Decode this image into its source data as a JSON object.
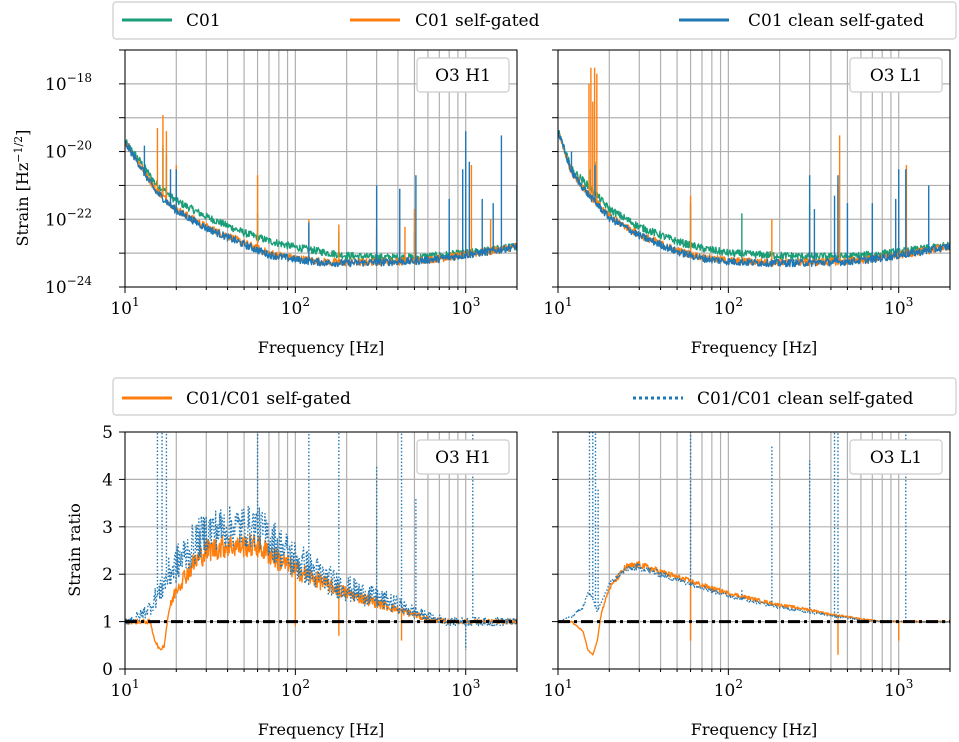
{
  "legend_top": {
    "items": [
      {
        "label": "C01",
        "color": "#1a9e77",
        "style": "solid"
      },
      {
        "label": "C01 self-gated",
        "color": "#ff7f0e",
        "style": "solid"
      },
      {
        "label": "C01 clean self-gated",
        "color": "#1f77b4",
        "style": "solid"
      }
    ]
  },
  "legend_bottom": {
    "items": [
      {
        "label": "C01/C01 self-gated",
        "color": "#ff7f0e",
        "style": "solid"
      },
      {
        "label": "C01/C01 clean self-gated",
        "color": "#1f77b4",
        "style": "dotted"
      }
    ]
  },
  "chart_data": [
    {
      "type": "line",
      "panel_label": "O3 H1",
      "xlabel": "Frequency [Hz]",
      "ylabel_main": "Strain [Hz",
      "ylabel_exp": "−1/2",
      "ylabel_close": "]",
      "x_scale": "log",
      "y_scale": "log",
      "xlim": [
        10,
        2000
      ],
      "ylim": [
        1e-24,
        1e-17
      ],
      "x_ticks": [
        {
          "base": "10",
          "exp": "1",
          "v": 10
        },
        {
          "base": "10",
          "exp": "2",
          "v": 100
        },
        {
          "base": "10",
          "exp": "3",
          "v": 1000
        }
      ],
      "y_ticks": [
        {
          "base": "10",
          "exp": "−18",
          "v": 1e-18
        },
        {
          "base": "10",
          "exp": "−20",
          "v": 1e-20
        },
        {
          "base": "10",
          "exp": "−22",
          "v": 1e-22
        },
        {
          "base": "10",
          "exp": "−24",
          "v": 1e-24
        }
      ],
      "grid": true,
      "series": [
        {
          "name": "C01",
          "color": "#1a9e77",
          "x": [
            10,
            12,
            15,
            20,
            30,
            50,
            70,
            100,
            150,
            200,
            300,
            500,
            700,
            1000,
            1500,
            2000
          ],
          "y": [
            2e-20,
            6e-21,
            1.2e-21,
            3.5e-22,
            1.2e-22,
            4e-23,
            2.3e-23,
            1.5e-23,
            1.05e-23,
            8.5e-24,
            7.5e-24,
            7.5e-24,
            8.5e-24,
            1e-23,
            1.3e-23,
            1.6e-23
          ],
          "spikes": [
            [
              16.7,
              1.5e-20
            ],
            [
              17.5,
              8e-21
            ],
            [
              20,
              1.5e-21
            ],
            [
              60,
              1.5e-22
            ],
            [
              120,
              5e-23
            ],
            [
              180,
              4e-23
            ],
            [
              300,
              3e-23
            ],
            [
              500,
              4e-23
            ]
          ]
        },
        {
          "name": "C01 self-gated",
          "color": "#ff7f0e",
          "x": [
            10,
            12,
            15,
            20,
            30,
            50,
            70,
            100,
            150,
            200,
            300,
            500,
            700,
            1000,
            1500,
            2000
          ],
          "y": [
            2e-20,
            5e-21,
            8e-22,
            2e-22,
            6e-23,
            2e-23,
            1e-23,
            7e-24,
            5.5e-24,
            5.3e-24,
            5.5e-24,
            6e-24,
            7e-24,
            9e-24,
            1.2e-23,
            1.6e-23
          ],
          "spikes": [
            [
              15.5,
              5e-20
            ],
            [
              16.7,
              1.2e-19
            ],
            [
              17.5,
              4e-20
            ],
            [
              20,
              4e-21
            ],
            [
              60,
              2e-21
            ],
            [
              120,
              1e-22
            ],
            [
              180,
              7e-23
            ],
            [
              300,
              6e-23
            ],
            [
              440,
              6e-23
            ],
            [
              500,
              2e-22
            ],
            [
              1000,
              6e-22
            ],
            [
              1080,
              4e-21
            ],
            [
              1400,
              1e-22
            ]
          ]
        },
        {
          "name": "C01 clean self-gated",
          "color": "#1f77b4",
          "x": [
            10,
            12,
            15,
            20,
            30,
            50,
            70,
            100,
            150,
            200,
            300,
            500,
            700,
            1000,
            1500,
            2000
          ],
          "y": [
            1.8e-20,
            4.5e-21,
            7e-22,
            1.8e-22,
            5.5e-23,
            1.8e-23,
            9e-24,
            6.5e-24,
            5.2e-24,
            5.1e-24,
            5.3e-24,
            5.8e-24,
            6.8e-24,
            8.8e-24,
            1.2e-23,
            1.6e-23
          ],
          "spikes": [
            [
              13,
              1.5e-20
            ],
            [
              18.5,
              3e-21
            ],
            [
              20,
              3e-21
            ],
            [
              120,
              8e-23
            ],
            [
              300,
              1e-21
            ],
            [
              410,
              8e-22
            ],
            [
              510,
              2e-21
            ],
            [
              800,
              4e-22
            ],
            [
              960,
              3e-21
            ],
            [
              1000,
              4e-20
            ],
            [
              1050,
              5e-21
            ],
            [
              1250,
              4e-22
            ],
            [
              1450,
              3e-22
            ],
            [
              1620,
              3e-20
            ],
            [
              2000,
              1e-21
            ]
          ]
        }
      ]
    },
    {
      "type": "line",
      "panel_label": "O3 L1",
      "xlabel": "Frequency [Hz]",
      "x_scale": "log",
      "y_scale": "log",
      "xlim": [
        10,
        2000
      ],
      "ylim": [
        1e-24,
        1e-17
      ],
      "x_ticks": [
        {
          "base": "10",
          "exp": "1",
          "v": 10
        },
        {
          "base": "10",
          "exp": "2",
          "v": 100
        },
        {
          "base": "10",
          "exp": "3",
          "v": 1000
        }
      ],
      "grid": true,
      "series": [
        {
          "name": "C01",
          "color": "#1a9e77",
          "x": [
            10,
            12,
            15,
            20,
            30,
            50,
            70,
            100,
            150,
            200,
            300,
            500,
            700,
            1000,
            1500,
            2000
          ],
          "y": [
            4e-20,
            3e-21,
            1e-21,
            2e-22,
            6e-23,
            2.2e-23,
            1.4e-23,
            1e-23,
            9e-24,
            8.5e-24,
            8e-24,
            8e-24,
            9e-24,
            1.1e-23,
            1.4e-23,
            1.7e-23
          ],
          "spikes": [
            [
              15.5,
              3e-21
            ],
            [
              16.5,
              5e-21
            ],
            [
              60,
              3e-22
            ],
            [
              120,
              1.5e-22
            ],
            [
              300,
              3e-22
            ]
          ]
        },
        {
          "name": "C01 self-gated",
          "color": "#ff7f0e",
          "x": [
            10,
            12,
            15,
            20,
            30,
            50,
            70,
            100,
            150,
            200,
            300,
            500,
            700,
            1000,
            1500,
            2000
          ],
          "y": [
            4e-20,
            2.5e-21,
            6e-22,
            1.2e-22,
            3.5e-23,
            1.2e-23,
            7.5e-24,
            6e-24,
            5.5e-24,
            5.3e-24,
            5.4e-24,
            5.8e-24,
            6.8e-24,
            8.8e-24,
            1.2e-23,
            1.6e-23
          ],
          "spikes": [
            [
              15.2,
              1e-18
            ],
            [
              15.6,
              3e-18
            ],
            [
              16.0,
              3e-19
            ],
            [
              16.4,
              3e-18
            ],
            [
              16.9,
              2e-18
            ],
            [
              60,
              5e-22
            ],
            [
              180,
              1e-22
            ],
            [
              300,
              1e-22
            ],
            [
              440,
              1e-21
            ],
            [
              450,
              3e-20
            ],
            [
              1000,
              1e-22
            ],
            [
              1110,
              4e-21
            ]
          ]
        },
        {
          "name": "C01 clean self-gated",
          "color": "#1f77b4",
          "x": [
            10,
            12,
            15,
            20,
            30,
            50,
            70,
            100,
            150,
            200,
            300,
            500,
            700,
            1000,
            1500,
            2000
          ],
          "y": [
            4e-20,
            2.5e-21,
            5.5e-22,
            1.1e-22,
            3.3e-23,
            1.1e-23,
            7e-24,
            5.7e-24,
            5.2e-24,
            5.1e-24,
            5.2e-24,
            5.6e-24,
            6.6e-24,
            8.6e-24,
            1.2e-23,
            1.6e-23
          ],
          "spikes": [
            [
              12,
              1e-20
            ],
            [
              16.5,
              4e-21
            ],
            [
              300,
              2e-21
            ],
            [
              320,
              2e-22
            ],
            [
              420,
              5e-22
            ],
            [
              440,
              2e-21
            ],
            [
              500,
              3e-22
            ],
            [
              700,
              3e-22
            ],
            [
              960,
              4e-22
            ],
            [
              1000,
              3e-21
            ],
            [
              1100,
              3e-21
            ],
            [
              1500,
              1e-21
            ],
            [
              2000,
              1e-21
            ]
          ]
        }
      ]
    },
    {
      "type": "line",
      "panel_label": "O3 H1",
      "xlabel": "Frequency [Hz]",
      "ylabel": "Strain ratio",
      "x_scale": "log",
      "y_scale": "linear",
      "xlim": [
        10,
        2000
      ],
      "ylim": [
        0,
        5
      ],
      "x_ticks": [
        {
          "base": "10",
          "exp": "1",
          "v": 10
        },
        {
          "base": "10",
          "exp": "2",
          "v": 100
        },
        {
          "base": "10",
          "exp": "3",
          "v": 1000
        }
      ],
      "y_ticks": [
        {
          "label": "0",
          "v": 0
        },
        {
          "label": "1",
          "v": 1
        },
        {
          "label": "2",
          "v": 2
        },
        {
          "label": "3",
          "v": 3
        },
        {
          "label": "4",
          "v": 4
        },
        {
          "label": "5",
          "v": 5
        }
      ],
      "grid": true,
      "reference_line": 1,
      "series": [
        {
          "name": "C01/C01 self-gated",
          "color": "#ff7f0e",
          "style": "solid",
          "band": 0.25,
          "x": [
            10,
            12,
            14,
            15,
            16,
            17,
            18,
            20,
            25,
            30,
            40,
            60,
            80,
            100,
            150,
            200,
            300,
            400,
            500,
            600,
            800,
            1000,
            1500,
            2000
          ],
          "y": [
            1.0,
            1.0,
            1.0,
            0.6,
            0.4,
            0.5,
            1.2,
            1.7,
            2.2,
            2.5,
            2.6,
            2.6,
            2.3,
            2.1,
            1.8,
            1.6,
            1.4,
            1.25,
            1.15,
            1.05,
            1.0,
            1.0,
            1.0,
            1.0
          ],
          "spikes": [
            [
              60,
              2.7
            ],
            [
              100,
              0.9
            ],
            [
              180,
              0.7
            ],
            [
              420,
              0.6
            ]
          ]
        },
        {
          "name": "C01/C01 clean self-gated",
          "color": "#1f77b4",
          "style": "dotted",
          "band": 0.45,
          "x": [
            10,
            12,
            14,
            15,
            16,
            17,
            18,
            20,
            25,
            30,
            40,
            60,
            80,
            100,
            150,
            200,
            300,
            400,
            500,
            600,
            800,
            1000,
            1500,
            2000
          ],
          "y": [
            1.0,
            1.1,
            1.3,
            1.5,
            1.6,
            1.8,
            2.0,
            2.2,
            2.6,
            2.9,
            3.0,
            3.0,
            2.6,
            2.3,
            1.9,
            1.7,
            1.5,
            1.35,
            1.2,
            1.1,
            1.0,
            1.0,
            1.0,
            1.0
          ],
          "spikes": [
            [
              15.5,
              5
            ],
            [
              16.5,
              5
            ],
            [
              17.5,
              5
            ],
            [
              60,
              5
            ],
            [
              120,
              5
            ],
            [
              180,
              5
            ],
            [
              300,
              4.3
            ],
            [
              420,
              5
            ],
            [
              510,
              3.6
            ],
            [
              1000,
              0.4
            ],
            [
              1100,
              5
            ]
          ]
        }
      ]
    },
    {
      "type": "line",
      "panel_label": "O3 L1",
      "xlabel": "Frequency [Hz]",
      "x_scale": "log",
      "y_scale": "linear",
      "xlim": [
        10,
        2000
      ],
      "ylim": [
        0,
        5
      ],
      "x_ticks": [
        {
          "base": "10",
          "exp": "1",
          "v": 10
        },
        {
          "base": "10",
          "exp": "2",
          "v": 100
        },
        {
          "base": "10",
          "exp": "3",
          "v": 1000
        }
      ],
      "grid": true,
      "reference_line": 1,
      "series": [
        {
          "name": "C01/C01 self-gated",
          "color": "#ff7f0e",
          "style": "solid",
          "band": 0.08,
          "x": [
            10,
            12,
            14,
            15,
            16,
            17,
            18,
            20,
            25,
            30,
            40,
            60,
            80,
            100,
            150,
            200,
            300,
            400,
            500,
            600,
            800,
            1000,
            1500,
            2000
          ],
          "y": [
            1.0,
            1.0,
            0.8,
            0.4,
            0.3,
            0.6,
            1.2,
            1.7,
            2.15,
            2.2,
            2.05,
            1.85,
            1.7,
            1.6,
            1.45,
            1.35,
            1.25,
            1.15,
            1.1,
            1.05,
            1.0,
            1.0,
            1.0,
            1.0
          ],
          "spikes": [
            [
              60,
              0.6
            ],
            [
              440,
              0.3
            ],
            [
              1000,
              0.6
            ]
          ]
        },
        {
          "name": "C01/C01 clean self-gated",
          "color": "#1f77b4",
          "style": "dotted",
          "band": 0.08,
          "x": [
            10,
            12,
            14,
            15,
            16,
            17,
            18,
            20,
            25,
            30,
            40,
            60,
            80,
            100,
            150,
            200,
            300,
            400,
            500,
            600,
            800,
            1000,
            1500,
            2000
          ],
          "y": [
            1.0,
            1.1,
            1.3,
            1.6,
            1.5,
            1.2,
            1.4,
            1.8,
            2.1,
            2.15,
            2.0,
            1.8,
            1.65,
            1.55,
            1.4,
            1.3,
            1.2,
            1.12,
            1.08,
            1.03,
            1.0,
            1.0,
            1.0,
            1.0
          ],
          "spikes": [
            [
              15.3,
              5
            ],
            [
              16.0,
              5
            ],
            [
              16.6,
              5
            ],
            [
              17.2,
              3.8
            ],
            [
              60,
              5
            ],
            [
              120,
              1.7
            ],
            [
              180,
              4.7
            ],
            [
              300,
              4.4
            ],
            [
              420,
              5
            ],
            [
              440,
              5
            ],
            [
              1100,
              5
            ]
          ]
        }
      ]
    }
  ]
}
